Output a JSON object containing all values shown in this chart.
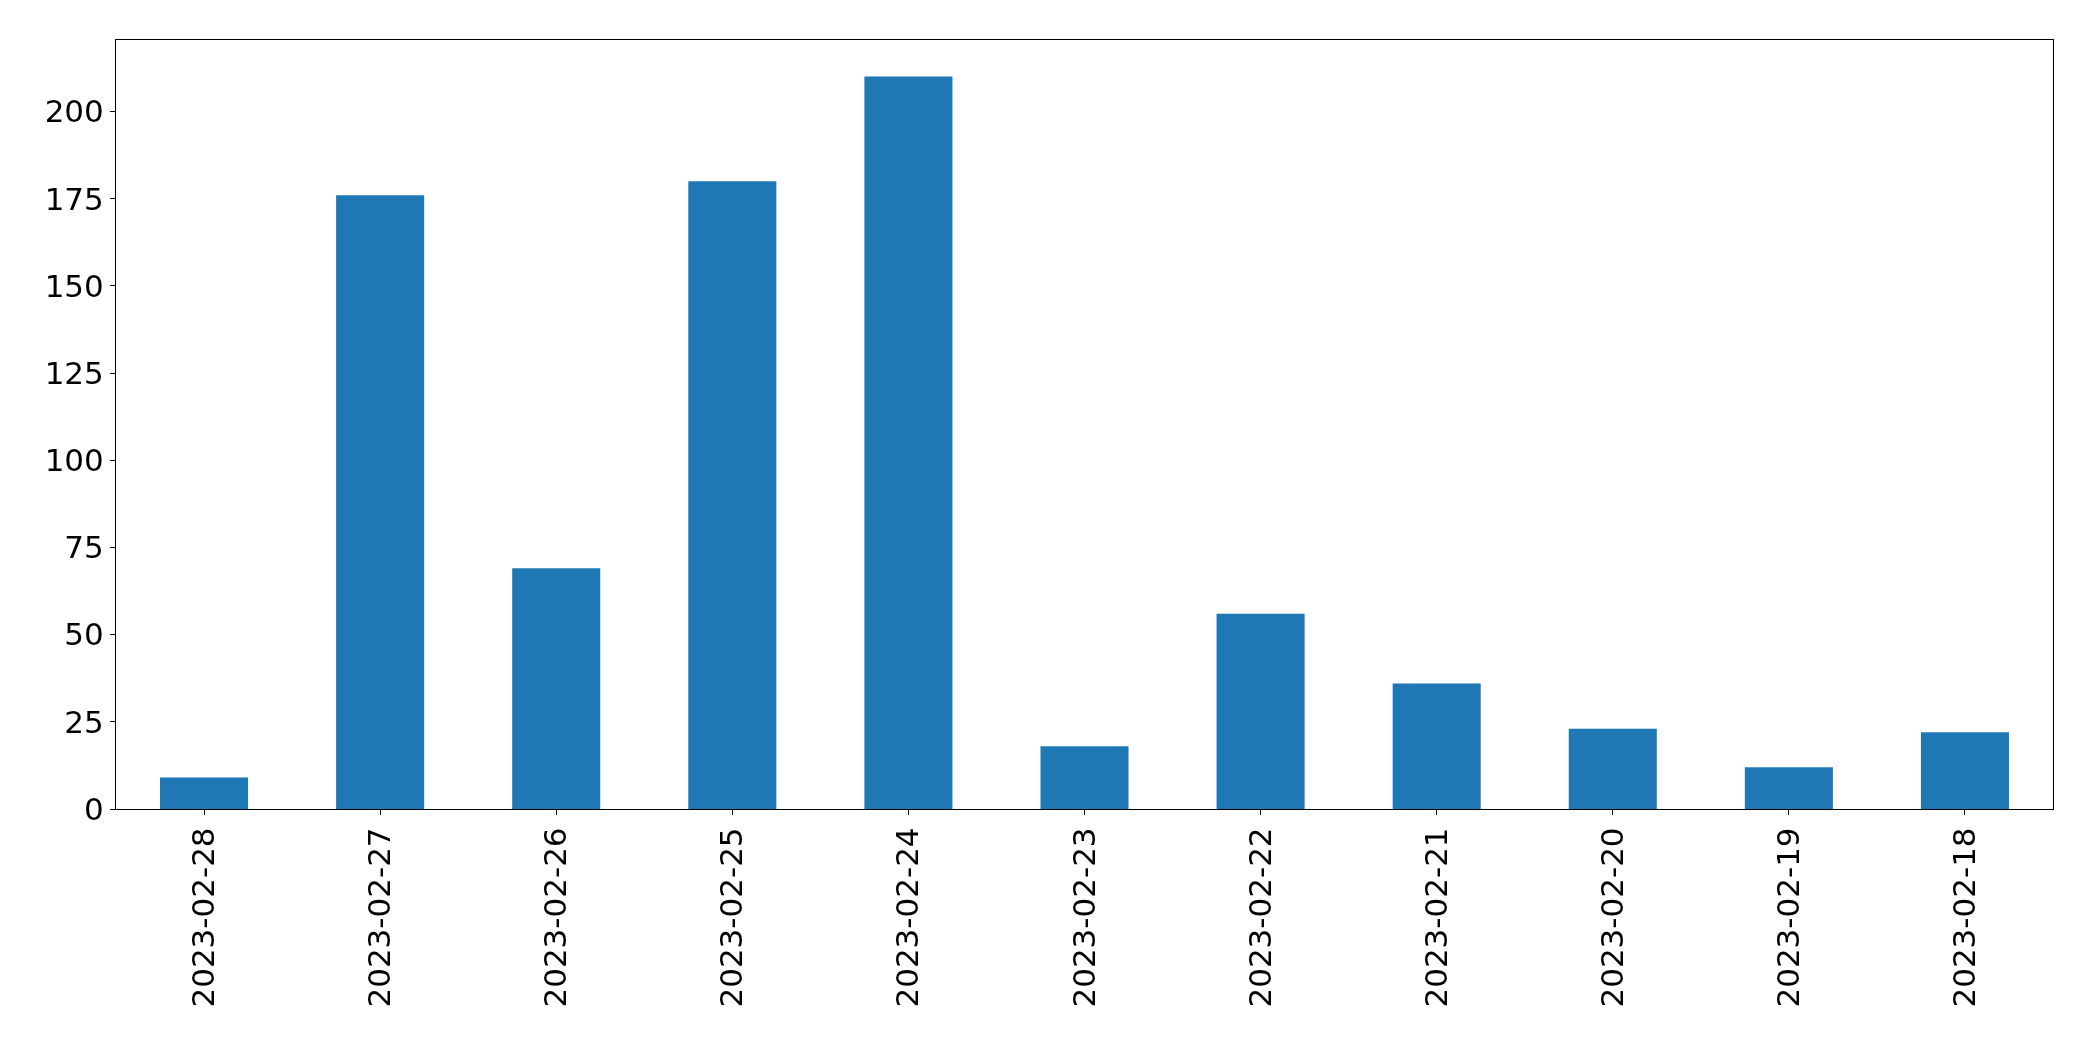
{
  "chart_data": {
    "type": "bar",
    "categories": [
      "2023-02-28",
      "2023-02-27",
      "2023-02-26",
      "2023-02-25",
      "2023-02-24",
      "2023-02-23",
      "2023-02-22",
      "2023-02-21",
      "2023-02-20",
      "2023-02-19",
      "2023-02-18"
    ],
    "values": [
      9,
      176,
      69,
      180,
      210,
      18,
      56,
      36,
      23,
      12,
      22
    ],
    "color": "#1f77b4",
    "ylim": [
      0,
      220.5
    ],
    "yticks": [
      0,
      25,
      50,
      75,
      100,
      125,
      150,
      175,
      200
    ]
  }
}
